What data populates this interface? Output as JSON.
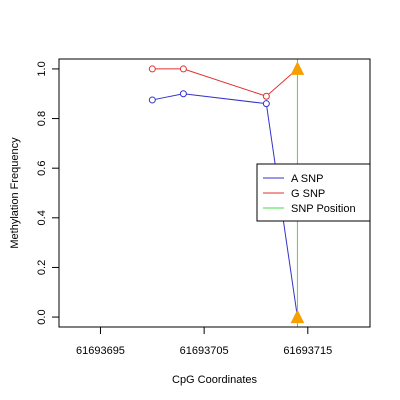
{
  "chart_data": {
    "type": "line",
    "title": "",
    "xlabel": "CpG Coordinates",
    "ylabel": "Methylation Frequency",
    "xlim": [
      61693691,
      61693721
    ],
    "ylim": [
      -0.04,
      1.04
    ],
    "x_ticks": [
      61693695,
      61693705,
      61693715
    ],
    "y_ticks": [
      0.0,
      0.2,
      0.4,
      0.6,
      0.8,
      1.0
    ],
    "x_tick_labels": [
      "61693695",
      "61693705",
      "61693715"
    ],
    "y_tick_labels": [
      "0.0",
      "0.2",
      "0.4",
      "0.6",
      "0.8",
      "1.0"
    ],
    "grid": false,
    "legend_position": "right",
    "series": [
      {
        "name": "A SNP",
        "color": "#3333cc",
        "points": [
          {
            "x": 61693700,
            "y": 0.875
          },
          {
            "x": 61693703,
            "y": 0.9
          },
          {
            "x": 61693711,
            "y": 0.86
          },
          {
            "x": 61693714,
            "y": 0.0
          }
        ]
      },
      {
        "name": "G SNP",
        "color": "#e03030",
        "points": [
          {
            "x": 61693700,
            "y": 1.0
          },
          {
            "x": 61693703,
            "y": 1.0
          },
          {
            "x": 61693711,
            "y": 0.89
          },
          {
            "x": 61693714,
            "y": 1.0
          }
        ]
      }
    ],
    "snp_position": {
      "name": "SNP Position",
      "color": "#44dd44",
      "x": 61693714,
      "marker_color": "#f5a000",
      "marker_y": [
        0.0,
        1.0
      ]
    }
  }
}
